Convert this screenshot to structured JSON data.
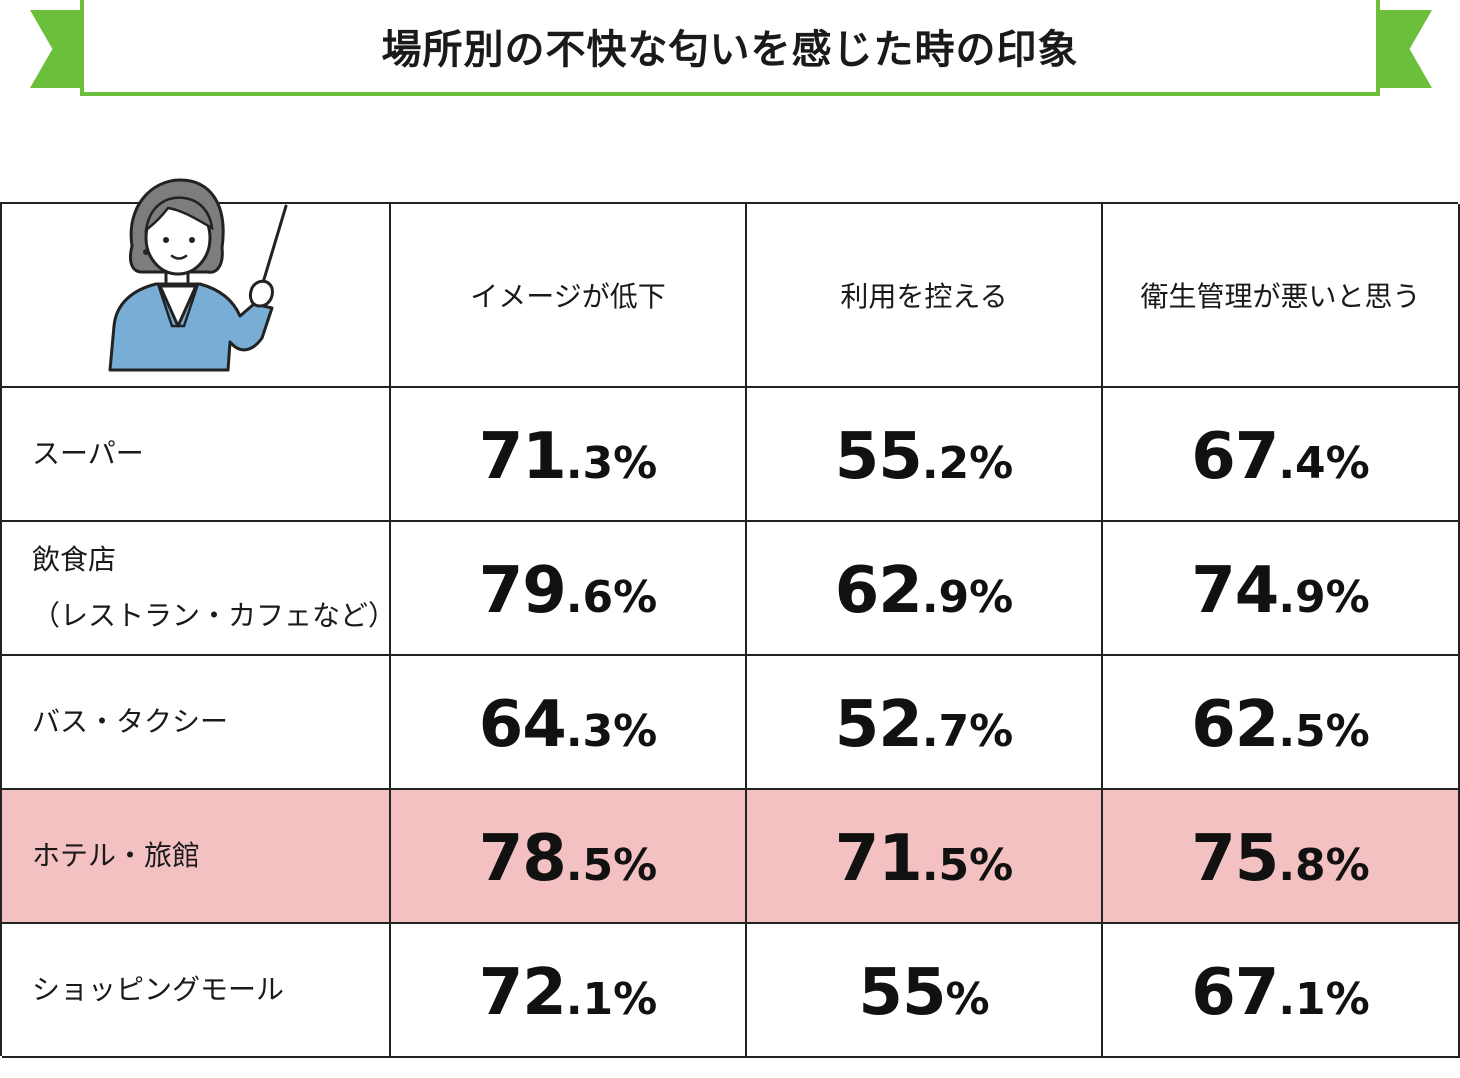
{
  "title": "場所別の不快な匂いを感じた時の印象",
  "colors": {
    "accent_green": "#6cbf3b",
    "highlight_row": "#f3c1c1",
    "jacket_blue": "#78aed6"
  },
  "illustration": {
    "icon": "teacher-with-pointer-icon"
  },
  "chart_data": {
    "type": "table",
    "title": "場所別の不快な匂いを感じた時の印象",
    "columns": [
      "イメージが低下",
      "利用を控える",
      "衛生管理が悪いと思う"
    ],
    "rows": [
      {
        "label": "スーパー",
        "values": [
          "71",
          "55",
          "67"
        ],
        "decimals": [
          ".3%",
          ".2%",
          ".4%"
        ],
        "highlight": false
      },
      {
        "label": "飲食店\n（レストラン・カフェなど）",
        "values": [
          "79",
          "62",
          "74"
        ],
        "decimals": [
          ".6%",
          ".9%",
          ".9%"
        ],
        "highlight": false
      },
      {
        "label": "バス・タクシー",
        "values": [
          "64",
          "52",
          "62"
        ],
        "decimals": [
          ".3%",
          ".7%",
          ".5%"
        ],
        "highlight": false
      },
      {
        "label": "ホテル・旅館",
        "values": [
          "78",
          "71",
          "75"
        ],
        "decimals": [
          ".5%",
          ".5%",
          ".8%"
        ],
        "highlight": true
      },
      {
        "label": "ショッピングモール",
        "values": [
          "72",
          "55",
          "67"
        ],
        "decimals": [
          ".1%",
          "%",
          ".1%"
        ],
        "highlight": false
      }
    ],
    "numeric_values": [
      [
        71.3,
        55.2,
        67.4
      ],
      [
        79.6,
        62.9,
        74.9
      ],
      [
        64.3,
        52.7,
        62.5
      ],
      [
        78.5,
        71.5,
        75.8
      ],
      [
        72.1,
        55.0,
        67.1
      ]
    ]
  }
}
